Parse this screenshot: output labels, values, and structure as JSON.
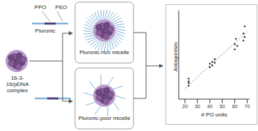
{
  "diagram": {
    "polymer": {
      "label": "Pluronic",
      "block_a": "PPO",
      "block_b": "PEO"
    },
    "complex": {
      "label": "16-3-16/pDNA complex"
    },
    "micelles": [
      {
        "label": "Pluronic-rich micelle"
      },
      {
        "label": "Pluronic-poor micelle"
      }
    ]
  },
  "chart_data": {
    "type": "scatter",
    "x_label": "# PO units",
    "y_label": "Antagonism",
    "xlim": [
      15,
      72
    ],
    "xticks": [
      20,
      30,
      40,
      50,
      60,
      70
    ],
    "ylim": [
      0,
      10
    ],
    "tick_labels": "x",
    "series": [
      {
        "type": "scatter",
        "color": "#333333",
        "marker": "circle",
        "x": [
          23,
          23,
          23,
          23,
          40,
          40,
          42,
          42,
          44,
          44,
          60,
          60,
          61,
          62,
          67,
          67,
          68,
          68
        ],
        "values": [
          1.5,
          2.0,
          2.3,
          1.8,
          3.6,
          4.0,
          4.2,
          3.8,
          4.5,
          4.1,
          5.6,
          6.2,
          6.8,
          6.0,
          6.6,
          7.4,
          8.2,
          7.0
        ]
      },
      {
        "type": "line",
        "color": "#999999",
        "line_style": "dashed",
        "x": [
          20,
          70
        ],
        "values": [
          1.2,
          7.6
        ]
      }
    ]
  }
}
